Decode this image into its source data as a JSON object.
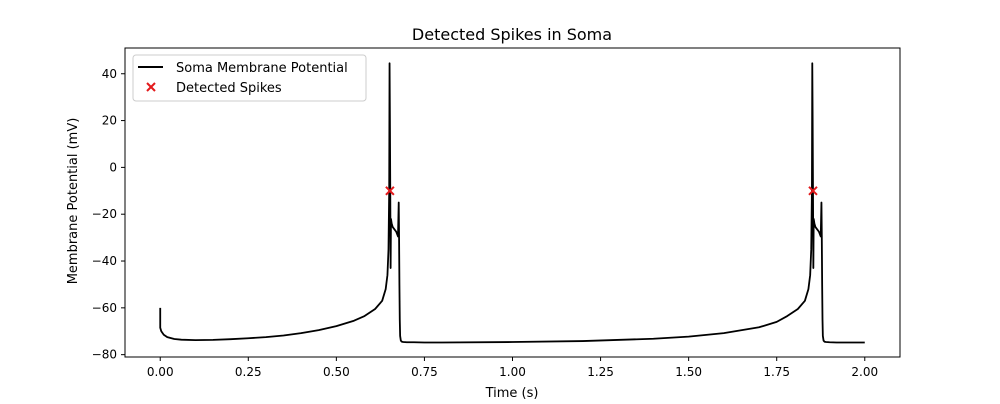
{
  "chart_data": {
    "type": "line",
    "title": "Detected Spikes in Soma",
    "xlabel": "Time (s)",
    "ylabel": "Membrane Potential (mV)",
    "xlim": [
      -0.1,
      2.1
    ],
    "ylim": [
      -81,
      51
    ],
    "x_ticks": [
      0.0,
      0.25,
      0.5,
      0.75,
      1.0,
      1.25,
      1.5,
      1.75,
      2.0
    ],
    "x_tick_labels": [
      "0.00",
      "0.25",
      "0.50",
      "0.75",
      "1.00",
      "1.25",
      "1.50",
      "1.75",
      "2.00"
    ],
    "y_ticks": [
      -80,
      -60,
      -40,
      -20,
      0,
      20,
      40
    ],
    "y_tick_labels": [
      "−80",
      "−60",
      "−40",
      "−20",
      "0",
      "20",
      "40"
    ],
    "grid": false,
    "legend_position": "upper-left",
    "series": [
      {
        "name": "Soma Membrane Potential",
        "kind": "line",
        "color": "#000000",
        "x": [
          0.0,
          0.0,
          0.003,
          0.01,
          0.02,
          0.04,
          0.06,
          0.1,
          0.15,
          0.2,
          0.25,
          0.3,
          0.35,
          0.4,
          0.45,
          0.5,
          0.55,
          0.58,
          0.61,
          0.63,
          0.64,
          0.645,
          0.648,
          0.65,
          0.651,
          0.652,
          0.653,
          0.654,
          0.655,
          0.657,
          0.66,
          0.665,
          0.67,
          0.675,
          0.677,
          0.678,
          0.679,
          0.68,
          0.681,
          0.683,
          0.686,
          0.69,
          0.7,
          0.72,
          0.75,
          0.8,
          1.0,
          1.2,
          1.4,
          1.5,
          1.6,
          1.7,
          1.75,
          1.78,
          1.81,
          1.83,
          1.84,
          1.845,
          1.848,
          1.85,
          1.851,
          1.852,
          1.853,
          1.854,
          1.855,
          1.857,
          1.86,
          1.865,
          1.87,
          1.875,
          1.877,
          1.878,
          1.879,
          1.88,
          1.881,
          1.883,
          1.886,
          1.89,
          1.9,
          1.92,
          1.95,
          2.0
        ],
        "y": [
          -60,
          -68.5,
          -70,
          -71.5,
          -72.5,
          -73.3,
          -73.6,
          -73.8,
          -73.7,
          -73.4,
          -73.0,
          -72.5,
          -71.8,
          -70.8,
          -69.5,
          -67.8,
          -65.5,
          -63.5,
          -60.5,
          -57.0,
          -52.0,
          -46.0,
          -35.0,
          -10.0,
          44.5,
          20.0,
          -10.0,
          -43.0,
          -22.0,
          -24.0,
          -25.5,
          -26.5,
          -27.5,
          -29.5,
          -15.0,
          -30.0,
          -50.0,
          -65.0,
          -72.0,
          -74.0,
          -74.5,
          -74.6,
          -74.7,
          -74.7,
          -74.8,
          -74.8,
          -74.6,
          -74.2,
          -73.2,
          -72.3,
          -70.8,
          -68.3,
          -66.0,
          -63.5,
          -60.5,
          -57.0,
          -52.0,
          -46.0,
          -35.0,
          -10.0,
          44.5,
          20.0,
          -10.0,
          -43.0,
          -22.0,
          -24.0,
          -25.5,
          -26.5,
          -27.5,
          -29.5,
          -15.0,
          -30.0,
          -50.0,
          -65.0,
          -72.0,
          -74.0,
          -74.5,
          -74.6,
          -74.7,
          -74.8,
          -74.8,
          -74.8
        ]
      },
      {
        "name": "Detected Spikes",
        "kind": "scatter",
        "marker": "x",
        "color": "#e31a1c",
        "x": [
          0.652,
          1.853
        ],
        "y": [
          -10,
          -10
        ]
      }
    ]
  }
}
